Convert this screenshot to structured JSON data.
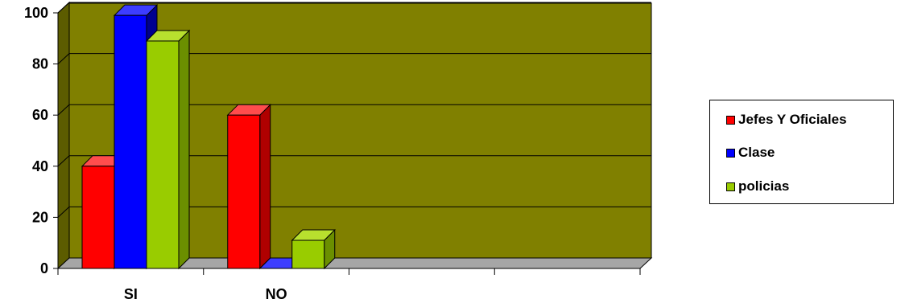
{
  "chart_data": {
    "type": "bar",
    "categories": [
      "SI",
      "NO",
      "",
      ""
    ],
    "series": [
      {
        "name": "Jefes Y Oficiales",
        "values": [
          40,
          60,
          null,
          null
        ],
        "color": "#ff0000",
        "side": "#b00000",
        "top": "#ff4d4d"
      },
      {
        "name": "Clase",
        "values": [
          99,
          0,
          null,
          null
        ],
        "color": "#0000ff",
        "side": "#00008f",
        "top": "#3d3dff"
      },
      {
        "name": "policias",
        "values": [
          89,
          11,
          null,
          null
        ],
        "color": "#99cc00",
        "side": "#6b8f00",
        "top": "#b8e02e"
      }
    ],
    "y_ticks": [
      "0",
      "20",
      "40",
      "60",
      "80",
      "100"
    ],
    "ylim": [
      0,
      100
    ],
    "grid": true,
    "plot_background": "#808000",
    "legend_position": "right"
  }
}
